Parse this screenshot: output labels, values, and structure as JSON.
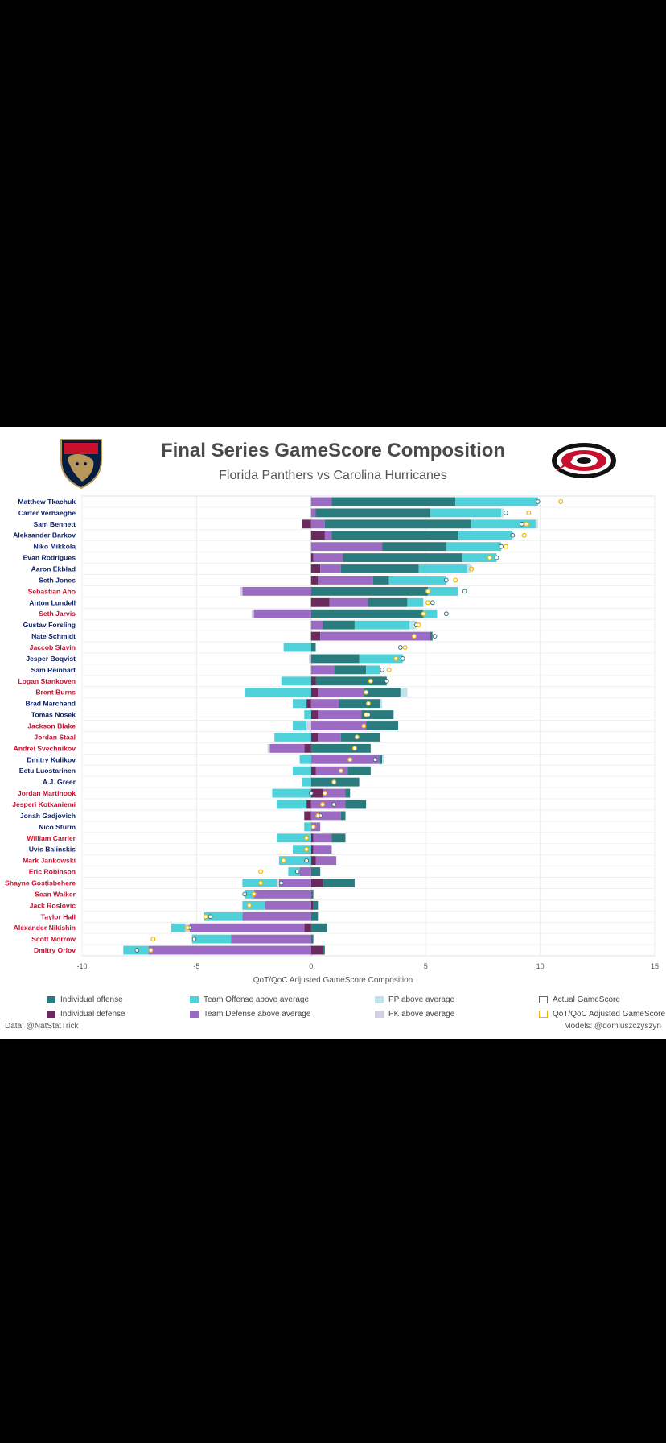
{
  "header": {
    "title": "Final Series GameScore Composition",
    "subtitle": "Florida Panthers vs Carolina Hurricanes"
  },
  "footer": {
    "source": "Data: @NatStatTrick",
    "credit": "Models: @domluszczyszyn"
  },
  "colors": {
    "individual_offense": "#2a7b7d",
    "individual_defense": "#6b2a5e",
    "team_offense": "#4fd1d9",
    "team_defense": "#9b6bc4",
    "pp": "#bfe3ec",
    "pk": "#d4d0e4",
    "florida_name": "#0a1f6b",
    "carolina_name": "#c8102e",
    "adjusted_marker": "#f0b400"
  },
  "legend": [
    {
      "key": "individual_offense",
      "label": "Individual offense"
    },
    {
      "key": "team_offense",
      "label": "Team Offense above average"
    },
    {
      "key": "pp",
      "label": "PP above average"
    },
    {
      "key": "actual",
      "label": "Actual GameScore"
    },
    {
      "key": "individual_defense",
      "label": "Individual defense"
    },
    {
      "key": "team_defense",
      "label": "Team Defense above average"
    },
    {
      "key": "pk",
      "label": "PK above average"
    },
    {
      "key": "adjusted",
      "label": "QoT/QoC Adjusted GameScore"
    }
  ],
  "chart_data": {
    "type": "bar",
    "stacked": true,
    "orientation": "horizontal",
    "xlabel": "QoT/QoC Adjusted GameScore Composition",
    "xlim": [
      -10,
      15
    ],
    "xticks": [
      -10,
      -5,
      0,
      5,
      10,
      15
    ],
    "grid": true,
    "players": [
      {
        "name": "Matthew Tkachuk",
        "team": "FLA",
        "id": 0.0,
        "td": 0.9,
        "pk": 0.0,
        "io": 5.4,
        "to": 3.6,
        "pp": 0.0,
        "actual": 9.9,
        "adj": 10.9
      },
      {
        "name": "Carter Verhaeghe",
        "team": "FLA",
        "id": 0.0,
        "td": 0.2,
        "pk": 0.0,
        "io": 5.0,
        "to": 3.1,
        "pp": 0.1,
        "actual": 8.5,
        "adj": 9.5
      },
      {
        "name": "Sam Bennett",
        "team": "FLA",
        "id": -0.4,
        "td": 0.6,
        "pk": 0.0,
        "io": 6.4,
        "to": 2.8,
        "pp": 0.1,
        "actual": 9.2,
        "adj": 9.4
      },
      {
        "name": "Aleksander Barkov",
        "team": "FLA",
        "id": 0.6,
        "td": 0.3,
        "pk": 0.0,
        "io": 5.5,
        "to": 2.4,
        "pp": 0.0,
        "actual": 8.8,
        "adj": 9.3
      },
      {
        "name": "Niko Mikkola",
        "team": "FLA",
        "id": 0.0,
        "td": 3.1,
        "pk": 0.0,
        "io": 2.8,
        "to": 2.4,
        "pp": 0.0,
        "actual": 8.3,
        "adj": 8.5
      },
      {
        "name": "Evan Rodrigues",
        "team": "FLA",
        "id": 0.1,
        "td": 1.3,
        "pk": 0.0,
        "io": 5.2,
        "to": 1.5,
        "pp": 0.0,
        "actual": 8.1,
        "adj": 7.8
      },
      {
        "name": "Aaron Ekblad",
        "team": "FLA",
        "id": 0.4,
        "td": 0.9,
        "pk": 0.0,
        "io": 3.4,
        "to": 2.1,
        "pp": 0.2,
        "actual": 7.0,
        "adj": 7.0
      },
      {
        "name": "Seth Jones",
        "team": "FLA",
        "id": 0.3,
        "td": 2.4,
        "pk": 0.0,
        "io": 0.7,
        "to": 2.5,
        "pp": 0.0,
        "actual": 5.9,
        "adj": 6.3
      },
      {
        "name": "Sebastian Aho",
        "team": "CAR",
        "id": 0.0,
        "td": -3.0,
        "pk": -0.1,
        "io": 5.1,
        "to": 1.3,
        "pp": 0.0,
        "actual": 6.7,
        "adj": 5.1
      },
      {
        "name": "Anton Lundell",
        "team": "FLA",
        "id": 0.8,
        "td": 1.7,
        "pk": 0.0,
        "io": 1.7,
        "to": 0.7,
        "pp": 0.0,
        "actual": 5.3,
        "adj": 5.1
      },
      {
        "name": "Seth Jarvis",
        "team": "CAR",
        "id": 0.0,
        "td": -2.5,
        "pk": -0.1,
        "io": 4.9,
        "to": 0.6,
        "pp": 0.0,
        "actual": 5.9,
        "adj": 4.9
      },
      {
        "name": "Gustav Forsling",
        "team": "FLA",
        "id": 0.0,
        "td": 0.5,
        "pk": 0.0,
        "io": 1.4,
        "to": 2.4,
        "pp": 0.3,
        "actual": 4.6,
        "adj": 4.7
      },
      {
        "name": "Nate Schmidt",
        "team": "FLA",
        "id": 0.4,
        "td": 4.8,
        "pk": 0.0,
        "io": 0.1,
        "to": 0.0,
        "pp": 0.0,
        "actual": 5.4,
        "adj": 4.5
      },
      {
        "name": "Jaccob Slavin",
        "team": "CAR",
        "id": 0.0,
        "td": 0.0,
        "pk": 0.0,
        "io": 0.2,
        "to": -1.2,
        "pp": 0.0,
        "actual": 3.9,
        "adj": 4.1
      },
      {
        "name": "Jesper Boqvist",
        "team": "FLA",
        "id": 0.0,
        "td": 0.0,
        "pk": -0.1,
        "io": 2.1,
        "to": 1.9,
        "pp": 0.0,
        "actual": 4.0,
        "adj": 3.7
      },
      {
        "name": "Sam Reinhart",
        "team": "FLA",
        "id": 0.0,
        "td": 1.0,
        "pk": 0.0,
        "io": 1.4,
        "to": 0.6,
        "pp": 0.0,
        "actual": 3.1,
        "adj": 3.4
      },
      {
        "name": "Logan Stankoven",
        "team": "CAR",
        "id": 0.2,
        "td": 0.0,
        "pk": 0.0,
        "io": 3.1,
        "to": -1.3,
        "pp": 0.0,
        "actual": 3.3,
        "adj": 2.6
      },
      {
        "name": "Brent Burns",
        "team": "CAR",
        "id": 0.3,
        "td": 2.0,
        "pk": 0.0,
        "io": 1.6,
        "to": -2.9,
        "pp": 0.3,
        "actual": 2.4,
        "adj": 2.4
      },
      {
        "name": "Brad Marchand",
        "team": "FLA",
        "id": -0.2,
        "td": 1.2,
        "pk": 0.0,
        "io": 1.8,
        "to": -0.6,
        "pp": 0.1,
        "actual": 2.5,
        "adj": 2.5
      },
      {
        "name": "Tomas Nosek",
        "team": "FLA",
        "id": 0.3,
        "td": 1.9,
        "pk": 0.0,
        "io": 1.4,
        "to": -0.3,
        "pp": 0.0,
        "actual": 2.5,
        "adj": 2.4
      },
      {
        "name": "Jackson Blake",
        "team": "CAR",
        "id": 0.0,
        "td": 2.4,
        "pk": -0.2,
        "io": 1.4,
        "to": -0.6,
        "pp": 0.0,
        "actual": 2.3,
        "adj": 2.3
      },
      {
        "name": "Jordan Staal",
        "team": "CAR",
        "id": 0.3,
        "td": 1.0,
        "pk": 0.0,
        "io": 1.7,
        "to": -1.6,
        "pp": 0.0,
        "actual": 2.0,
        "adj": 2.0
      },
      {
        "name": "Andrei Svechnikov",
        "team": "CAR",
        "id": -0.3,
        "td": -1.5,
        "pk": -0.1,
        "io": 2.6,
        "to": 0.0,
        "pp": 0.0,
        "actual": 1.9,
        "adj": 1.9
      },
      {
        "name": "Dmitry Kulikov",
        "team": "FLA",
        "id": 0.0,
        "td": 3.0,
        "pk": 0.0,
        "io": 0.1,
        "to": -0.5,
        "pp": 0.1,
        "actual": 2.8,
        "adj": 1.7
      },
      {
        "name": "Eetu Luostarinen",
        "team": "FLA",
        "id": 0.2,
        "td": 1.4,
        "pk": 0.0,
        "io": 1.0,
        "to": -0.8,
        "pp": 0.0,
        "actual": 1.3,
        "adj": 1.3
      },
      {
        "name": "A.J. Greer",
        "team": "FLA",
        "id": 0.0,
        "td": 0.0,
        "pk": 0.0,
        "io": 2.1,
        "to": -0.4,
        "pp": 0.0,
        "actual": 1.0,
        "adj": 1.0
      },
      {
        "name": "Jordan Martinook",
        "team": "CAR",
        "id": 0.5,
        "td": 1.0,
        "pk": 0.0,
        "io": 0.2,
        "to": -1.7,
        "pp": 0.0,
        "actual": 0.0,
        "adj": 0.6
      },
      {
        "name": "Jesperi Kotkaniemi",
        "team": "CAR",
        "id": -0.2,
        "td": 1.5,
        "pk": 0.0,
        "io": 0.9,
        "to": -1.3,
        "pp": 0.0,
        "actual": 1.0,
        "adj": 0.5
      },
      {
        "name": "Jonah Gadjovich",
        "team": "FLA",
        "id": -0.3,
        "td": 1.3,
        "pk": 0.0,
        "io": 0.2,
        "to": 0.0,
        "pp": 0.0,
        "actual": 0.4,
        "adj": 0.3
      },
      {
        "name": "Nico Sturm",
        "team": "FLA",
        "id": 0.0,
        "td": 0.4,
        "pk": 0.0,
        "io": 0.0,
        "to": -0.3,
        "pp": 0.0,
        "actual": 0.1,
        "adj": 0.1
      },
      {
        "name": "William Carrier",
        "team": "CAR",
        "id": 0.1,
        "td": 0.8,
        "pk": 0.0,
        "io": 0.6,
        "to": -1.5,
        "pp": 0.0,
        "actual": -0.2,
        "adj": -0.2
      },
      {
        "name": "Uvis Balinskis",
        "team": "FLA",
        "id": 0.1,
        "td": 0.8,
        "pk": 0.0,
        "io": 0.0,
        "to": -0.8,
        "pp": 0.0,
        "actual": -0.2,
        "adj": -0.2
      },
      {
        "name": "Mark Jankowski",
        "team": "CAR",
        "id": 0.2,
        "td": 0.9,
        "pk": 0.0,
        "io": 0.0,
        "to": -1.4,
        "pp": 0.0,
        "actual": -0.2,
        "adj": -1.2
      },
      {
        "name": "Eric Robinson",
        "team": "CAR",
        "id": 0.0,
        "td": -0.5,
        "pk": 0.0,
        "io": 0.4,
        "to": -0.5,
        "pp": 0.0,
        "actual": -0.6,
        "adj": -2.2
      },
      {
        "name": "Shayne Gostisbehere",
        "team": "CAR",
        "id": 0.5,
        "td": -1.4,
        "pk": -0.1,
        "io": 1.4,
        "to": -1.5,
        "pp": 0.0,
        "actual": -1.3,
        "adj": -2.2
      },
      {
        "name": "Sean Walker",
        "team": "CAR",
        "id": 0.0,
        "td": -2.5,
        "pk": 0.0,
        "io": 0.1,
        "to": -0.4,
        "pp": 0.0,
        "actual": -2.9,
        "adj": -2.5
      },
      {
        "name": "Jack Roslovic",
        "team": "CAR",
        "id": 0.1,
        "td": -2.0,
        "pk": 0.0,
        "io": 0.2,
        "to": -1.0,
        "pp": 0.0,
        "actual": -2.7,
        "adj": -2.7
      },
      {
        "name": "Taylor Hall",
        "team": "CAR",
        "id": 0.0,
        "td": -3.0,
        "pk": 0.0,
        "io": 0.3,
        "to": -1.7,
        "pp": 0.0,
        "actual": -4.4,
        "adj": -4.6
      },
      {
        "name": "Alexander Nikishin",
        "team": "CAR",
        "id": -0.3,
        "td": -5.0,
        "pk": -0.2,
        "io": 0.7,
        "to": -0.6,
        "pp": 0.0,
        "actual": -5.3,
        "adj": -5.4
      },
      {
        "name": "Scott Morrow",
        "team": "CAR",
        "id": 0.0,
        "td": -3.5,
        "pk": 0.0,
        "io": 0.1,
        "to": -1.7,
        "pp": 0.0,
        "actual": -5.1,
        "adj": -6.9
      },
      {
        "name": "Dmitry Orlov",
        "team": "CAR",
        "id": 0.5,
        "td": -7.1,
        "pk": 0.0,
        "io": 0.1,
        "to": -1.1,
        "pp": 0.0,
        "actual": -7.6,
        "adj": -7.0
      }
    ]
  }
}
